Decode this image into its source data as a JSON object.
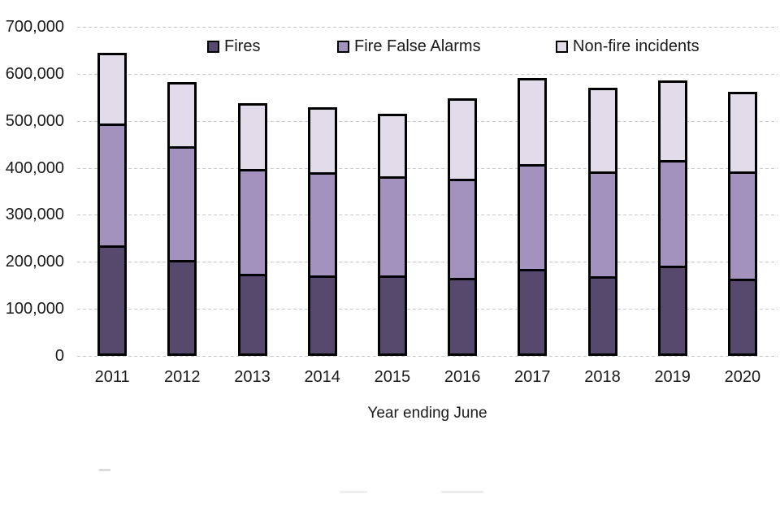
{
  "chart_data": {
    "type": "bar",
    "stacked": true,
    "title": "",
    "categories": [
      "2011",
      "2012",
      "2013",
      "2014",
      "2015",
      "2016",
      "2017",
      "2018",
      "2019",
      "2020"
    ],
    "series": [
      {
        "name": "Fires",
        "color": "#57496E",
        "values": [
          224000,
          194000,
          165000,
          160000,
          160000,
          155000,
          175000,
          159000,
          181000,
          154000
        ]
      },
      {
        "name": "Fire False Alarms",
        "color": "#A492BE",
        "values": [
          266000,
          246000,
          227000,
          225000,
          216000,
          216000,
          227000,
          229000,
          231000,
          234000
        ]
      },
      {
        "name": "Non-fire incidents",
        "color": "#E2DBEA",
        "values": [
          145000,
          132000,
          135000,
          133000,
          129000,
          166000,
          178000,
          172000,
          164000,
          164000
        ]
      }
    ],
    "totals": [
      635000,
      572000,
      527000,
      518000,
      505000,
      537000,
      580000,
      560000,
      576000,
      552000
    ],
    "xlabel": "Year ending June",
    "ylabel": "",
    "ylim": [
      0,
      700000
    ],
    "ytick_step": 100000,
    "ytick_labels": [
      "0",
      "100,000",
      "200,000",
      "300,000",
      "400,000",
      "500,000",
      "600,000",
      "700,000"
    ],
    "grid": "horizontal-dashed",
    "gridline_color": "#c9c9c9",
    "bar_outline_color": "#000000",
    "legend_position": "top-inside"
  },
  "legend": {
    "items": [
      {
        "label": "Fires",
        "color": "#57496E"
      },
      {
        "label": "Fire False Alarms",
        "color": "#A492BE"
      },
      {
        "label": "Non-fire incidents",
        "color": "#E2DBEA"
      }
    ]
  },
  "text_color": "#1a1a1a"
}
